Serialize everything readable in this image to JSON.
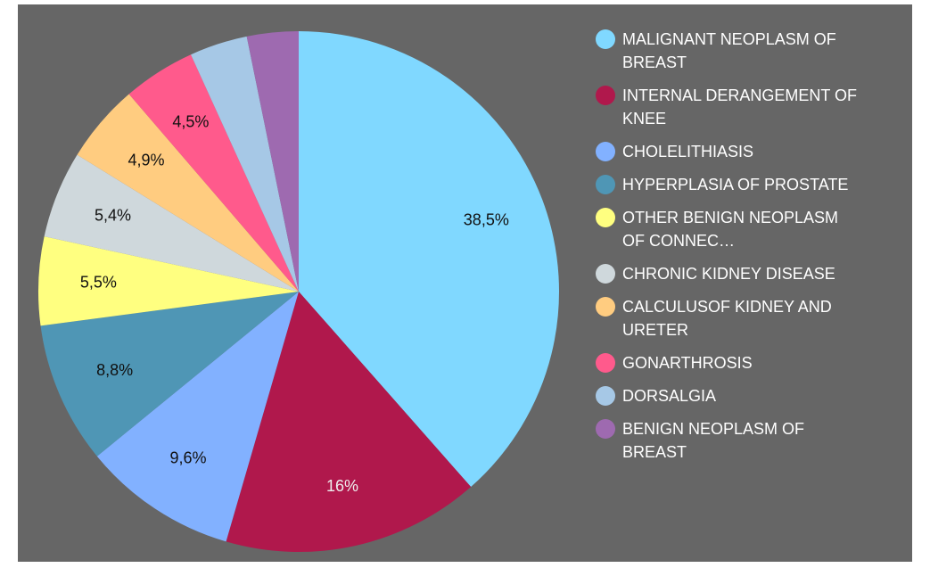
{
  "chart_data": {
    "type": "pie",
    "categories": [
      "MALIGNANT NEOPLASM OF BREAST",
      "INTERNAL DERANGEMENT OF KNEE",
      "CHOLELITHIASIS",
      "HYPERPLASIA OF PROSTATE",
      "OTHER BENIGN NEOPLASM OF CONNEC…",
      "CHRONIC KIDNEY DISEASE",
      "CALCULUSOF KIDNEY AND URETER",
      "GONARTHROSIS",
      "DORSALGIA",
      "BENIGN NEOPLASM OF BREAST"
    ],
    "values": [
      38.5,
      16,
      9.6,
      8.8,
      5.5,
      5.4,
      4.9,
      4.5,
      3.6,
      3.2
    ],
    "value_labels": [
      "38,5%",
      "16%",
      "9,6%",
      "8,8%",
      "5,5%",
      "5,4%",
      "4,9%",
      "4,5%",
      null,
      null
    ],
    "colors": [
      "#80d8ff",
      "#b0184c",
      "#82b1ff",
      "#4f96b5",
      "#ffff80",
      "#cfd8dc",
      "#ffcc80",
      "#ff5a8c",
      "#a6c8e6",
      "#9e6ab0"
    ],
    "legend": "right"
  }
}
